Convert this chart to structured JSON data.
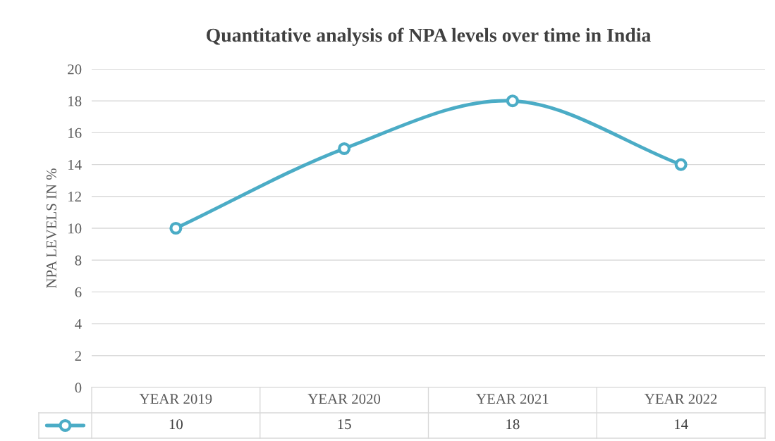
{
  "chart_data": {
    "type": "line",
    "title": "Quantitative analysis of NPA levels over time in India",
    "ylabel": "NPA LEVELS IN %",
    "categories": [
      "YEAR 2019",
      "YEAR 2020",
      "YEAR 2021",
      "YEAR 2022"
    ],
    "series": [
      {
        "color": "#4bacc6",
        "values": [
          10,
          15,
          18,
          14
        ]
      }
    ],
    "ylim": [
      0,
      20
    ],
    "yticks": [
      0,
      2,
      4,
      6,
      8,
      10,
      12,
      14,
      16,
      18,
      20
    ],
    "grid": "y",
    "marker": "circle",
    "line_style": "solid",
    "data_labels": true
  }
}
